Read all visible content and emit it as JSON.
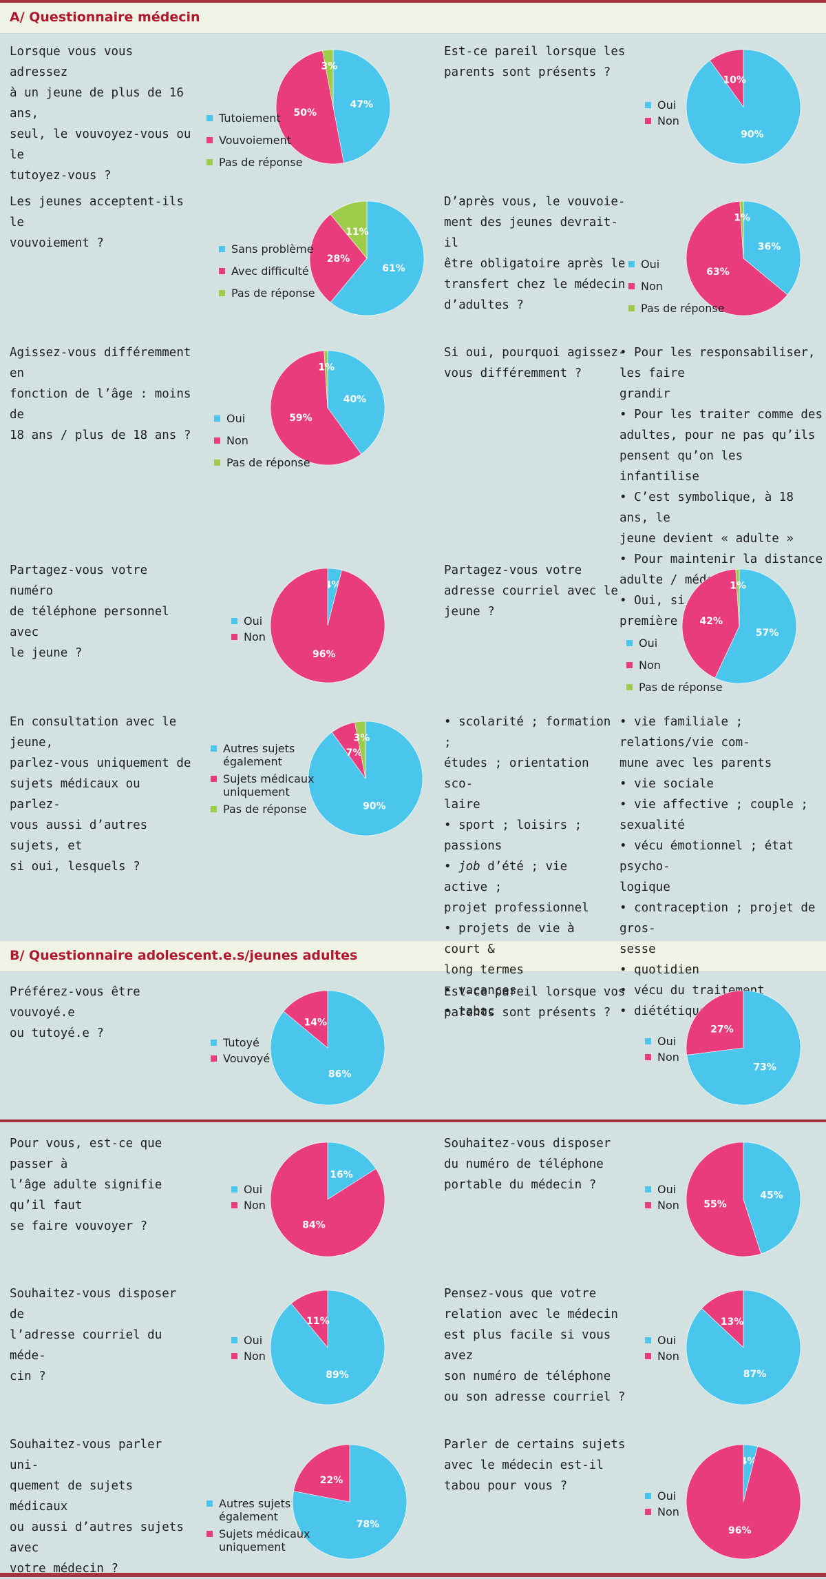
{
  "colors": {
    "blue": "#4ac6ec",
    "pink": "#e83c7d",
    "green": "#9ccc4a"
  },
  "section_a": {
    "title": "A/ Questionnaire médecin"
  },
  "section_b": {
    "title": "B/ Questionnaire adolescent.e.s/jeunes adultes"
  },
  "text_blocks": [
    {
      "lines": [
        "Lorsque vous vous adressez",
        "à un jeune de plus de 16 ans,",
        "seul, le vouvoyez-vous ou le",
        "tutoyez-vous ?"
      ]
    },
    {
      "lines": [
        "Est-ce pareil lorsque les",
        "parents sont présents ?"
      ]
    },
    {
      "lines": [
        "Les jeunes acceptent-ils le",
        "vouvoiement ?"
      ]
    },
    {
      "lines": [
        "D’après vous, le vouvoie-",
        "ment des jeunes devrait-il",
        "être obligatoire après le",
        "transfert chez le médecin",
        "d’adultes ?"
      ]
    },
    {
      "lines": [
        "Agissez-vous différemment en",
        "fonction de l’âge : moins de",
        "18 ans / plus de 18 ans ?"
      ]
    },
    {
      "lines": [
        "Si oui, pourquoi agissez-",
        "vous différemment ?"
      ]
    },
    {
      "lines": [
        "Partagez-vous votre numéro",
        "de téléphone personnel avec",
        "le jeune ?"
      ]
    },
    {
      "lines": [
        "Partagez-vous votre",
        "adresse courriel avec le",
        "jeune ?"
      ]
    },
    {
      "lines": [
        "En consultation avec le jeune,",
        "parlez-vous uniquement de",
        "sujets médicaux ou parlez-",
        "vous aussi d’autres sujets, et",
        "si oui, lesquels ?"
      ]
    },
    {
      "lines": [
        "Préférez-vous être vouvoyé.e",
        "ou tutoyé.e ?"
      ]
    },
    {
      "lines": [
        "Est-ce pareil lorsque vos",
        "parents sont présents ?"
      ]
    },
    {
      "lines": [
        "Pour vous, est-ce que passer à",
        "l’âge adulte signifie qu’il faut",
        "se faire vouvoyer ?"
      ]
    },
    {
      "lines": [
        "Souhaitez-vous disposer",
        "du numéro de téléphone",
        "portable du médecin ?"
      ]
    },
    {
      "lines": [
        "Souhaitez-vous disposer de",
        "l’adresse courriel du méde-",
        "cin ?"
      ]
    },
    {
      "lines": [
        "Pensez-vous que votre",
        "relation avec le médecin",
        "est plus facile si vous avez",
        "son numéro de téléphone",
        "ou son adresse courriel ?"
      ]
    },
    {
      "lines": [
        "Souhaitez-vous parler uni-",
        "quement de sujets médicaux",
        "ou aussi d’autres sujets avec",
        "votre médecin ?"
      ]
    },
    {
      "lines": [
        "Parler de certains sujets",
        "avec le médecin est-il",
        "tabou pour vous ?"
      ]
    }
  ],
  "reasons_list": [
    "• Pour les responsabiliser, les faire\ngrandir",
    "• Pour les traiter comme des\nadultes, pour ne pas qu’ils\npensent qu’on les infantilise",
    "• C’est symbolique, à 18 ans, le\njeune devient « adulte »",
    "• Pour maintenir la distance\nadulte / médecin",
    "• Oui, si vu pour la première fois"
  ],
  "topics_col1": [
    "• scolarité ; formation ;\nétudes ; orientation sco-\nlaire",
    "• sport ; loisirs ; passions",
    "• job d’été ; vie active ;\nprojet professionnel",
    "• projets de vie à court &\nlong termes",
    "• vacances",
    "• tabac"
  ],
  "topics_col2": [
    "• vie familiale ; relations/vie com-\nmune avec les parents",
    "• vie sociale",
    "• vie affective ; couple ; sexualité",
    "• vécu émotionnel ; état psycho-\nlogique",
    "• contraception ; projet de gros-\nsesse",
    "• quotidien",
    "• vécu du traitement",
    "• diététique"
  ],
  "chart_data": [
    {
      "type": "pie",
      "title": "",
      "categories": [
        "Tutoiement",
        "Vouvoiement",
        "Pas de réponse"
      ],
      "values": [
        47,
        50,
        3
      ],
      "labels": [
        "47%",
        "50%",
        "3%"
      ],
      "colors": [
        "blue",
        "pink",
        "green"
      ]
    },
    {
      "type": "pie",
      "title": "",
      "categories": [
        "Oui",
        "Non"
      ],
      "values": [
        90,
        10
      ],
      "labels": [
        "90%",
        "10%"
      ],
      "colors": [
        "blue",
        "pink"
      ]
    },
    {
      "type": "pie",
      "title": "",
      "categories": [
        "Sans problème",
        "Avec difficulté",
        "Pas de réponse"
      ],
      "values": [
        61,
        28,
        11
      ],
      "labels": [
        "61%",
        "28%",
        "11%"
      ],
      "colors": [
        "blue",
        "pink",
        "green"
      ]
    },
    {
      "type": "pie",
      "title": "",
      "categories": [
        "Oui",
        "Non",
        "Pas de réponse"
      ],
      "values": [
        36,
        63,
        1
      ],
      "labels": [
        "36%",
        "63%",
        "1%"
      ],
      "colors": [
        "blue",
        "pink",
        "green"
      ]
    },
    {
      "type": "pie",
      "title": "",
      "categories": [
        "Oui",
        "Non",
        "Pas de réponse"
      ],
      "values": [
        40,
        59,
        1
      ],
      "labels": [
        "40%",
        "59%",
        "1%"
      ],
      "colors": [
        "blue",
        "pink",
        "green"
      ]
    },
    {
      "type": "pie",
      "title": "",
      "categories": [
        "Oui",
        "Non"
      ],
      "values": [
        4,
        96
      ],
      "labels": [
        "4%",
        "96%"
      ],
      "colors": [
        "blue",
        "pink"
      ]
    },
    {
      "type": "pie",
      "title": "",
      "categories": [
        "Oui",
        "Non",
        "Pas de réponse"
      ],
      "values": [
        57,
        42,
        1
      ],
      "labels": [
        "57%",
        "42%",
        "1%"
      ],
      "colors": [
        "blue",
        "pink",
        "green"
      ]
    },
    {
      "type": "pie",
      "title": "",
      "categories": [
        "Autres sujets\négalement",
        "Sujets médicaux\nuniquement",
        "Pas de réponse"
      ],
      "values": [
        90,
        7,
        3
      ],
      "labels": [
        "90%",
        "7%",
        "3%"
      ],
      "colors": [
        "blue",
        "pink",
        "green"
      ]
    },
    {
      "type": "pie",
      "title": "",
      "categories": [
        "Tutoyé",
        "Vouvoyé"
      ],
      "values": [
        86,
        14
      ],
      "labels": [
        "86%",
        "14%"
      ],
      "colors": [
        "blue",
        "pink"
      ]
    },
    {
      "type": "pie",
      "title": "",
      "categories": [
        "Oui",
        "Non"
      ],
      "values": [
        73,
        27
      ],
      "labels": [
        "73%",
        "27%"
      ],
      "colors": [
        "blue",
        "pink"
      ]
    },
    {
      "type": "pie",
      "title": "",
      "categories": [
        "Oui",
        "Non"
      ],
      "values": [
        16,
        84
      ],
      "labels": [
        "16%",
        "84%"
      ],
      "colors": [
        "blue",
        "pink"
      ]
    },
    {
      "type": "pie",
      "title": "",
      "categories": [
        "Oui",
        "Non"
      ],
      "values": [
        45,
        55
      ],
      "labels": [
        "45%",
        "55%"
      ],
      "colors": [
        "blue",
        "pink"
      ]
    },
    {
      "type": "pie",
      "title": "",
      "categories": [
        "Oui",
        "Non"
      ],
      "values": [
        89,
        11
      ],
      "labels": [
        "89%",
        "11%"
      ],
      "colors": [
        "blue",
        "pink"
      ]
    },
    {
      "type": "pie",
      "title": "",
      "categories": [
        "Oui",
        "Non"
      ],
      "values": [
        87,
        13
      ],
      "labels": [
        "87%",
        "13%"
      ],
      "colors": [
        "blue",
        "pink"
      ]
    },
    {
      "type": "pie",
      "title": "",
      "categories": [
        "Autres sujets\négalement",
        "Sujets médicaux\nuniquement"
      ],
      "values": [
        78,
        22
      ],
      "labels": [
        "78%",
        "22%"
      ],
      "colors": [
        "blue",
        "pink"
      ]
    },
    {
      "type": "pie",
      "title": "",
      "categories": [
        "Oui",
        "Non"
      ],
      "values": [
        4,
        96
      ],
      "labels": [
        "4%",
        "96%"
      ],
      "colors": [
        "blue",
        "pink"
      ]
    }
  ]
}
